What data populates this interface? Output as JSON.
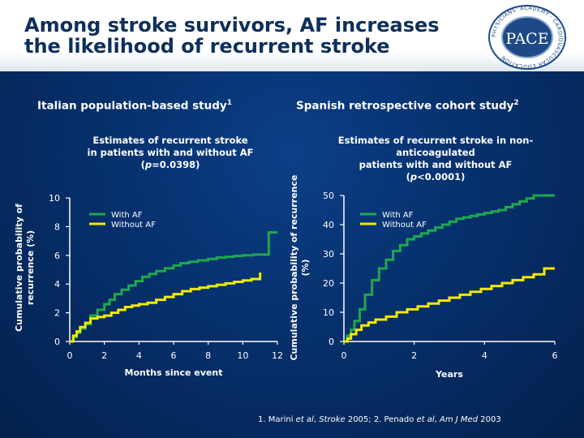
{
  "header": {
    "title_line1": "Among stroke survivors, AF increases",
    "title_line2": "the likelihood of recurrent stroke",
    "logo": {
      "icon": "pace-logo",
      "text": "PACE",
      "ring_text": "PHYSICIANS' ACADEMY · CARDIOVASCULAR EDUCATION"
    }
  },
  "left": {
    "study_title": "Italian population-based study",
    "study_ref": "1",
    "subtitle_line1": "Estimates of recurrent stroke",
    "subtitle_line2": "in patients with and without AF",
    "p_prefix": "(",
    "p_symbol": "p",
    "p_value": "=0.0398)"
  },
  "right": {
    "study_title": "Spanish retrospective cohort study",
    "study_ref": "2",
    "subtitle_line1": "Estimates of recurrent stroke in non-anticoagulated",
    "subtitle_line2": "patients with and without AF",
    "p_prefix": "(",
    "p_symbol": "p",
    "p_value": "<0.0001)"
  },
  "footnote": {
    "part1": "1. Marini ",
    "part2": "et al",
    "part3": ", ",
    "part4": "Stroke",
    "part5": " 2005; 2. Penado ",
    "part6": "et al",
    "part7": ", ",
    "part8": "Am J Med",
    "part9": " 2003"
  },
  "colors": {
    "with_af": "#1fa84f",
    "without_af": "#f2ea00",
    "axis": "#ffffff"
  },
  "chart_data": [
    {
      "type": "line",
      "step": true,
      "xlabel": "Months since event",
      "ylabel": "Cumulative probability of recurrence (%)",
      "xlim": [
        0,
        12
      ],
      "ylim": [
        0,
        10
      ],
      "xticks": [
        0,
        2,
        4,
        6,
        8,
        10,
        12
      ],
      "yticks": [
        0,
        2,
        4,
        6,
        8,
        10
      ],
      "legend_position": "upper-left",
      "series": [
        {
          "name": "With AF",
          "color": "#1fa84f",
          "x": [
            0,
            0.2,
            0.4,
            0.6,
            0.9,
            1.2,
            1.6,
            2.0,
            2.3,
            2.6,
            3.0,
            3.4,
            3.8,
            4.2,
            4.6,
            5.0,
            5.5,
            6.0,
            6.4,
            6.9,
            7.4,
            8.0,
            8.5,
            9.0,
            9.5,
            10.0,
            10.6,
            11.0,
            11.5,
            12.0
          ],
          "y": [
            0,
            0.3,
            0.6,
            0.9,
            1.2,
            1.8,
            2.2,
            2.6,
            2.9,
            3.3,
            3.6,
            3.9,
            4.2,
            4.5,
            4.7,
            4.9,
            5.1,
            5.3,
            5.45,
            5.55,
            5.65,
            5.75,
            5.85,
            5.9,
            5.95,
            6.0,
            6.05,
            6.05,
            7.6,
            7.6
          ]
        },
        {
          "name": "Without AF",
          "color": "#f2ea00",
          "x": [
            0,
            0.2,
            0.4,
            0.6,
            0.9,
            1.2,
            1.6,
            2.0,
            2.4,
            2.8,
            3.2,
            3.6,
            4.0,
            4.5,
            5.0,
            5.5,
            6.0,
            6.5,
            7.0,
            7.5,
            8.0,
            8.5,
            9.0,
            9.5,
            10.0,
            10.5,
            11.0
          ],
          "y": [
            0,
            0.4,
            0.7,
            1.0,
            1.3,
            1.6,
            1.7,
            1.8,
            2.0,
            2.2,
            2.4,
            2.5,
            2.6,
            2.7,
            2.9,
            3.1,
            3.3,
            3.5,
            3.65,
            3.75,
            3.85,
            3.95,
            4.05,
            4.15,
            4.25,
            4.35,
            4.8
          ]
        }
      ]
    },
    {
      "type": "line",
      "step": true,
      "xlabel": "Years",
      "ylabel": "Cumulative probability of recurrence (%)",
      "xlim": [
        0,
        6
      ],
      "ylim": [
        0,
        50
      ],
      "xticks": [
        0,
        2,
        4,
        6
      ],
      "yticks": [
        0,
        10,
        20,
        30,
        40,
        50
      ],
      "legend_position": "upper-left",
      "series": [
        {
          "name": "With AF",
          "color": "#1fa84f",
          "x": [
            0,
            0.1,
            0.2,
            0.3,
            0.45,
            0.6,
            0.8,
            1.0,
            1.2,
            1.4,
            1.6,
            1.8,
            2.0,
            2.2,
            2.4,
            2.6,
            2.8,
            3.0,
            3.2,
            3.4,
            3.6,
            3.8,
            4.0,
            4.2,
            4.4,
            4.6,
            4.8,
            5.0,
            5.2,
            5.4,
            5.6,
            6.0
          ],
          "y": [
            0,
            2,
            4,
            7,
            11,
            16,
            21,
            25,
            28,
            31,
            33,
            35,
            36,
            37,
            38,
            39,
            40,
            41,
            42,
            42.5,
            43,
            43.5,
            44,
            44.5,
            45,
            46,
            47,
            48,
            49,
            50,
            50,
            50
          ]
        },
        {
          "name": "Without AF",
          "color": "#f2ea00",
          "x": [
            0,
            0.1,
            0.2,
            0.35,
            0.5,
            0.7,
            0.9,
            1.2,
            1.5,
            1.8,
            2.1,
            2.4,
            2.7,
            3.0,
            3.3,
            3.6,
            3.9,
            4.2,
            4.5,
            4.8,
            5.1,
            5.4,
            5.7,
            6.0
          ],
          "y": [
            0,
            1,
            2.5,
            4,
            5.5,
            6.5,
            7.5,
            8.5,
            10,
            11,
            12,
            13,
            14,
            15,
            16,
            17,
            18,
            19,
            20,
            21,
            22,
            23,
            25,
            25
          ]
        }
      ]
    }
  ]
}
